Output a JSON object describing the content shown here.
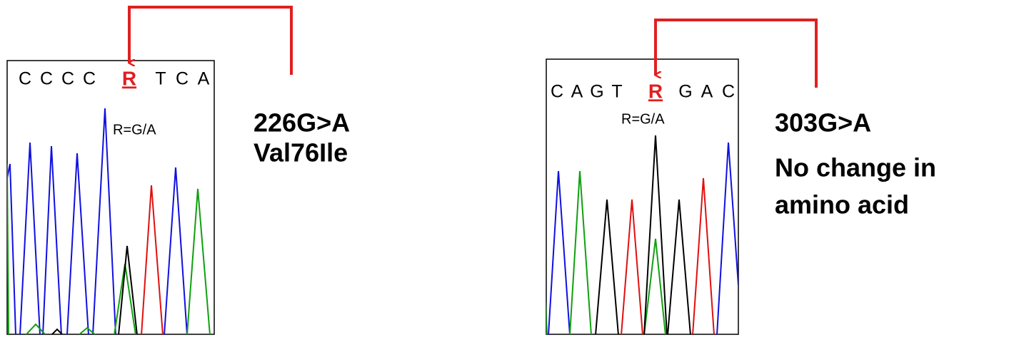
{
  "left": {
    "bases": [
      "C",
      "C",
      "C",
      "C",
      "R",
      "T",
      "C",
      "A"
    ],
    "ambiguity": "R=G/A",
    "mutation": "226G>A",
    "effect": [
      "Val76Ile"
    ]
  },
  "right": {
    "bases": [
      "C",
      "A",
      "G",
      "T",
      "R",
      "G",
      "A",
      "C"
    ],
    "ambiguity": "R=G/A",
    "mutation": "303G>A",
    "effect": [
      "No change in",
      "amino acid"
    ]
  }
}
